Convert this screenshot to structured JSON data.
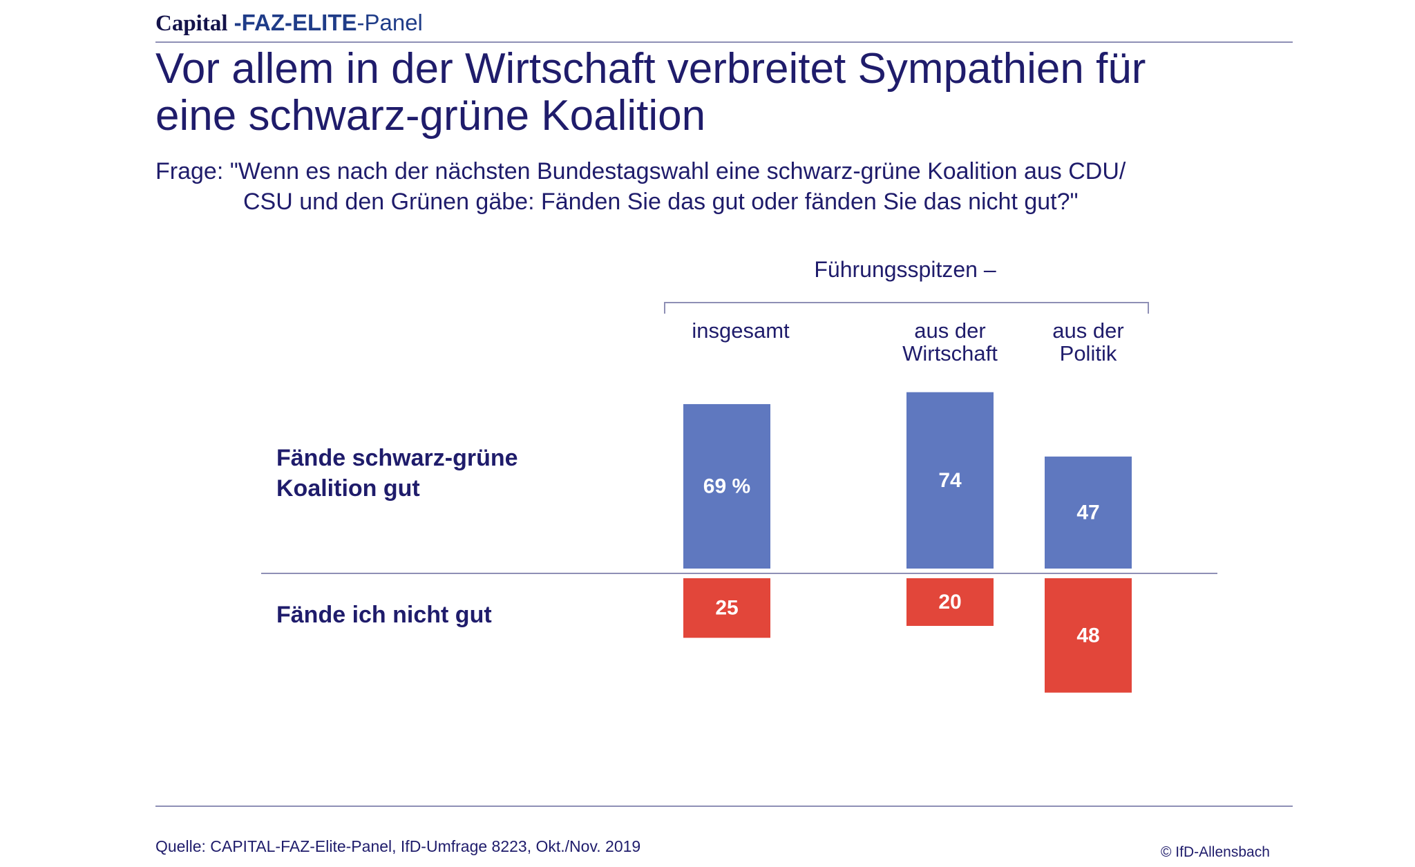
{
  "brand": {
    "part1": "Capital",
    "part2": " -FAZ-ELITE",
    "part3": "-Panel"
  },
  "title_line1": "Vor allem in der Wirtschaft verbreitet Sympathien für",
  "title_line2": "eine schwarz-grüne Koalition",
  "question_line1": "Frage: \"Wenn es nach der nächsten Bundestagswahl eine schwarz-grüne Koalition aus CDU/",
  "question_line2": "CSU und den Grünen gäbe: Fänden Sie das gut oder fänden Sie das nicht gut?\"",
  "group_label": "Führungsspitzen –",
  "colors": {
    "positive": "#5f78bf",
    "negative": "#e2463a",
    "text": "#1f1c6b",
    "rule": "#8e8fb5"
  },
  "chart_data": {
    "type": "bar",
    "categories": [
      "insgesamt",
      "aus der Wirtschaft",
      "aus der Politik"
    ],
    "category_lines": [
      [
        "insgesamt"
      ],
      [
        "aus der",
        "Wirtschaft"
      ],
      [
        "aus der",
        "Politik"
      ]
    ],
    "series": [
      {
        "name": "Fände schwarz-grüne Koalition gut",
        "values": [
          69,
          74,
          47
        ],
        "labels": [
          "69 %",
          "74",
          "47"
        ]
      },
      {
        "name": "Fände ich nicht gut",
        "values": [
          25,
          20,
          48
        ],
        "labels": [
          "25",
          "20",
          "48"
        ]
      }
    ],
    "series_label_lines": [
      [
        "Fände schwarz-grüne",
        "Koalition gut"
      ],
      [
        "Fände ich nicht gut"
      ]
    ],
    "unit": "%"
  },
  "footer": {
    "source": "Quelle: CAPITAL-FAZ-Elite-Panel, IfD-Umfrage 8223, Okt./Nov. 2019",
    "copyright": "© IfD-Allensbach"
  }
}
